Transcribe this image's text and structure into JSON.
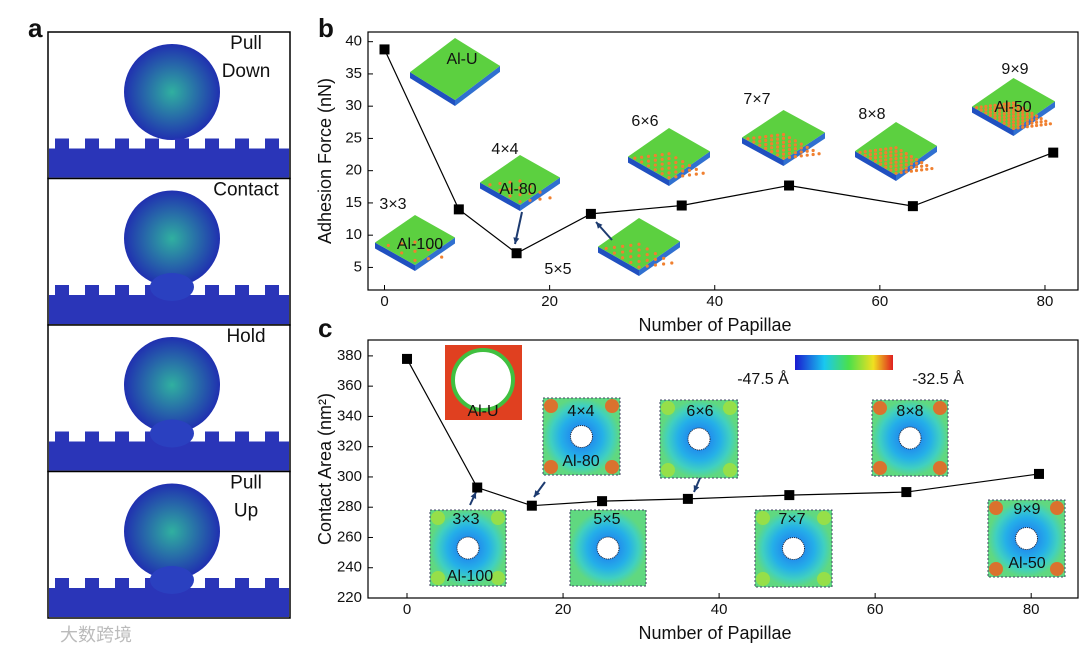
{
  "panel_a": {
    "label": "a",
    "frames": [
      [
        "Pull",
        "Down"
      ],
      [
        "Contact"
      ],
      [
        "Hold"
      ],
      [
        "Pull",
        "Up"
      ]
    ]
  },
  "watermark": "大数跨境",
  "chart_data": [
    {
      "type": "line",
      "panel_label": "b",
      "x_label": "Number of Papillae",
      "y_label": "Adhesion Force (nN)",
      "x": [
        0,
        9,
        16,
        25,
        36,
        49,
        64,
        81
      ],
      "values": [
        38.8,
        14,
        7.2,
        13.3,
        14.6,
        17.7,
        14.5,
        22.8
      ],
      "color": "#000000",
      "xlim": [
        -2,
        84
      ],
      "ylim": [
        1.5,
        41.5
      ],
      "xticks": [
        0,
        20,
        40,
        60,
        80
      ],
      "yticks": [
        5,
        10,
        15,
        20,
        25,
        30,
        35,
        40
      ],
      "annotations": [
        "Al-U",
        "3×3",
        "Al-100",
        "4×4",
        "Al-80",
        "5×5",
        "6×6",
        "7×7",
        "8×8",
        "9×9",
        "Al-50"
      ]
    },
    {
      "type": "line",
      "panel_label": "c",
      "x_label": "Number of Papillae",
      "y_label": "Contact Area (nm²)",
      "x": [
        0,
        9,
        16,
        25,
        36,
        49,
        64,
        81
      ],
      "values": [
        378,
        293,
        281,
        284,
        285.5,
        288,
        290,
        302
      ],
      "color": "#000000",
      "xlim": [
        -5,
        86
      ],
      "ylim": [
        220,
        390.5
      ],
      "xticks": [
        0,
        20,
        40,
        60,
        80
      ],
      "yticks": [
        220,
        240,
        260,
        280,
        300,
        320,
        340,
        360,
        380
      ],
      "annotations": [
        "Al-U",
        "3×3",
        "Al-100",
        "4×4",
        "Al-80",
        "5×5",
        "6×6",
        "7×7",
        "8×8",
        "9×9",
        "Al-50",
        "-47.5 Å",
        "-32.5 Å"
      ]
    }
  ]
}
